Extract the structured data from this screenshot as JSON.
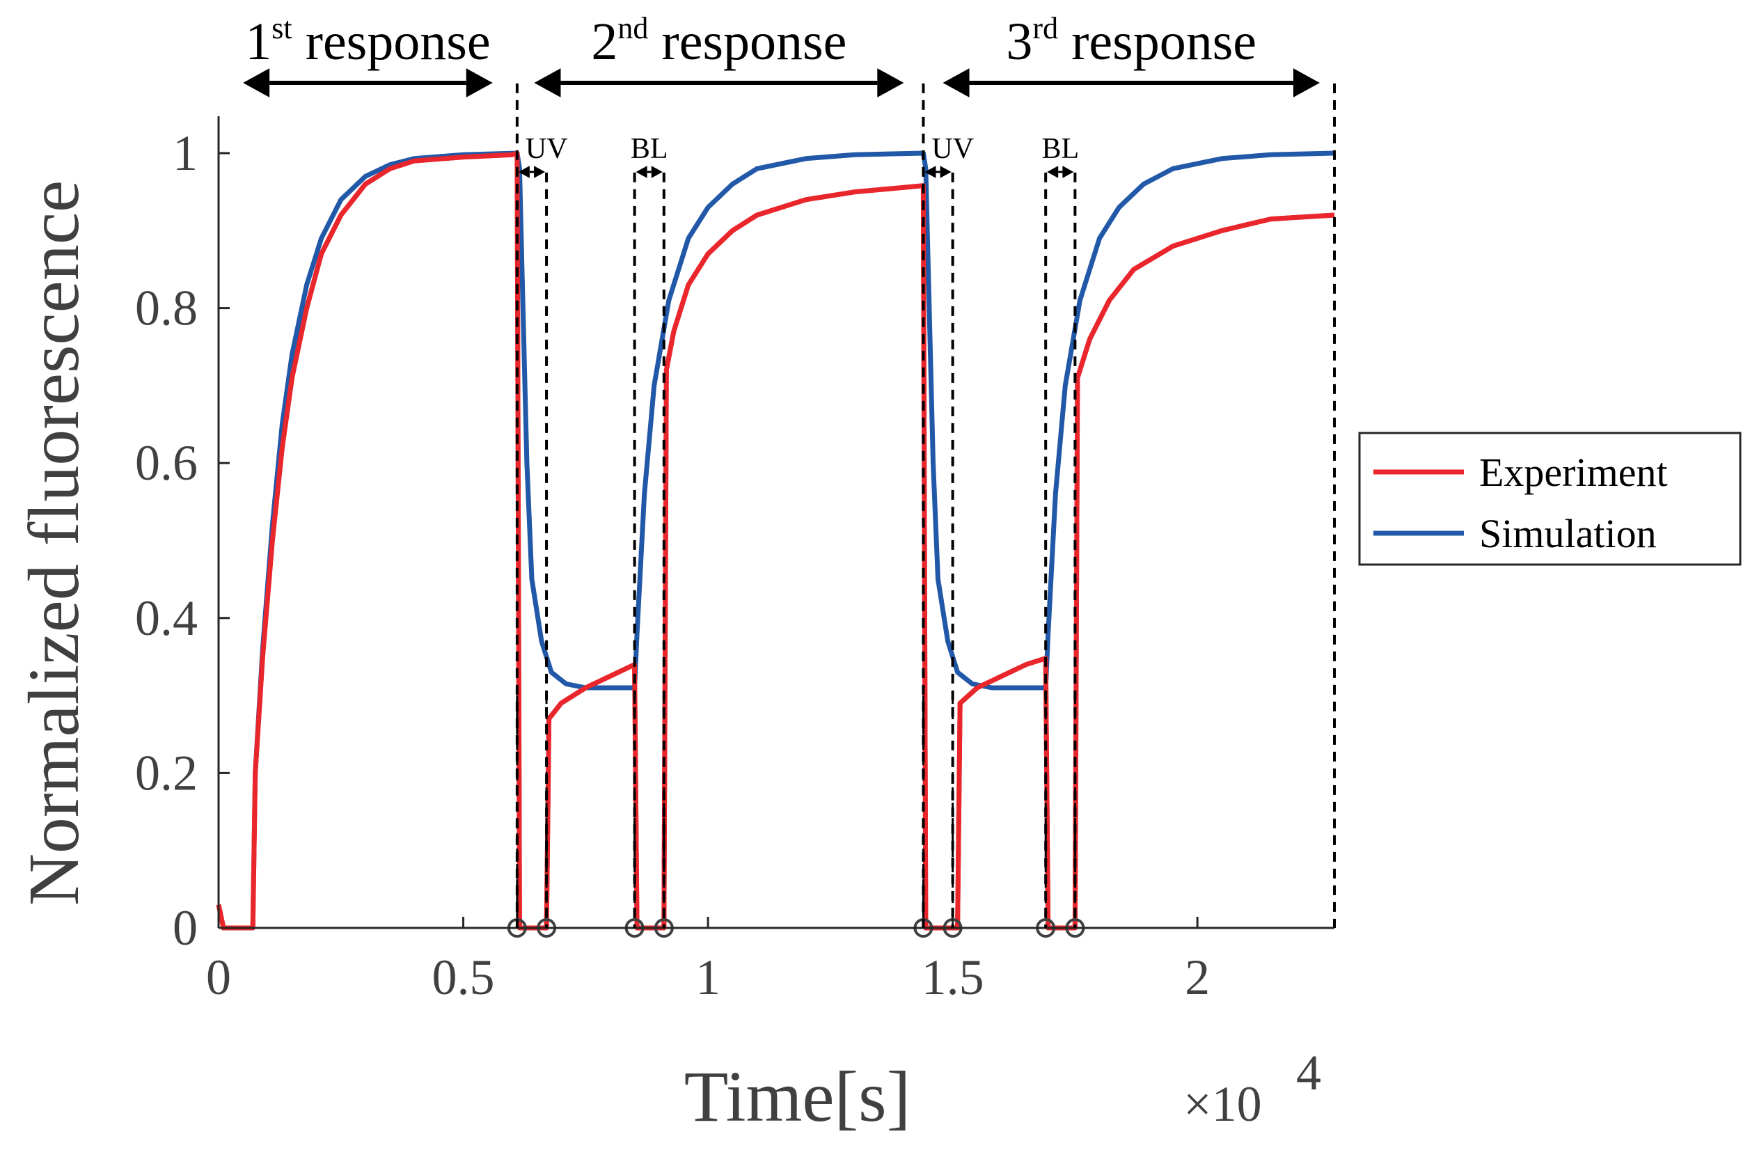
{
  "chart_data": {
    "type": "line",
    "title": "",
    "xlabel": "Time[s]",
    "ylabel": "Normalized fluorescence",
    "x_multiplier": "×10",
    "x_multiplier_exp": "4",
    "xlim": [
      0,
      2.28
    ],
    "ylim": [
      0,
      1.05
    ],
    "x_unit_scale": 10000,
    "xticks": [
      0,
      0.5,
      1,
      1.5,
      2
    ],
    "xtick_labels": [
      "0",
      "0.5",
      "1",
      "1.5",
      "2"
    ],
    "yticks": [
      0,
      0.2,
      0.4,
      0.6,
      0.8,
      1
    ],
    "ytick_labels": [
      "0",
      "0.2",
      "0.4",
      "0.6",
      "0.8",
      "1"
    ],
    "grid": false,
    "legend_position": "right",
    "series": [
      {
        "name": "Experiment",
        "color": "#e8262c",
        "dashed_overlay": true,
        "points": [
          [
            0,
            0.03
          ],
          [
            0.01,
            0
          ],
          [
            0.07,
            0
          ],
          [
            0.075,
            0.2
          ],
          [
            0.09,
            0.35
          ],
          [
            0.11,
            0.5
          ],
          [
            0.13,
            0.62
          ],
          [
            0.15,
            0.71
          ],
          [
            0.18,
            0.8
          ],
          [
            0.21,
            0.87
          ],
          [
            0.25,
            0.92
          ],
          [
            0.3,
            0.96
          ],
          [
            0.35,
            0.98
          ],
          [
            0.4,
            0.99
          ],
          [
            0.5,
            0.995
          ],
          [
            0.6,
            0.998
          ],
          [
            0.61,
            1.0
          ],
          [
            0.615,
            0
          ],
          [
            0.67,
            0
          ],
          [
            0.675,
            0.27
          ],
          [
            0.7,
            0.29
          ],
          [
            0.75,
            0.31
          ],
          [
            0.8,
            0.325
          ],
          [
            0.85,
            0.34
          ],
          [
            0.855,
            0
          ],
          [
            0.91,
            0
          ],
          [
            0.915,
            0.72
          ],
          [
            0.93,
            0.77
          ],
          [
            0.96,
            0.83
          ],
          [
            1.0,
            0.87
          ],
          [
            1.05,
            0.9
          ],
          [
            1.1,
            0.92
          ],
          [
            1.2,
            0.94
          ],
          [
            1.3,
            0.95
          ],
          [
            1.44,
            0.958
          ],
          [
            1.445,
            0
          ],
          [
            1.51,
            0
          ],
          [
            1.515,
            0.29
          ],
          [
            1.55,
            0.31
          ],
          [
            1.6,
            0.325
          ],
          [
            1.65,
            0.34
          ],
          [
            1.69,
            0.348
          ],
          [
            1.695,
            0
          ],
          [
            1.75,
            0
          ],
          [
            1.755,
            0.71
          ],
          [
            1.78,
            0.76
          ],
          [
            1.82,
            0.81
          ],
          [
            1.87,
            0.85
          ],
          [
            1.95,
            0.88
          ],
          [
            2.05,
            0.9
          ],
          [
            2.15,
            0.915
          ],
          [
            2.28,
            0.92
          ]
        ]
      },
      {
        "name": "Simulation",
        "color": "#2158a8",
        "dashed_overlay": false,
        "points": [
          [
            0.075,
            0.2
          ],
          [
            0.09,
            0.36
          ],
          [
            0.11,
            0.52
          ],
          [
            0.13,
            0.65
          ],
          [
            0.15,
            0.74
          ],
          [
            0.18,
            0.83
          ],
          [
            0.21,
            0.89
          ],
          [
            0.25,
            0.94
          ],
          [
            0.3,
            0.97
          ],
          [
            0.35,
            0.985
          ],
          [
            0.4,
            0.993
          ],
          [
            0.5,
            0.998
          ],
          [
            0.61,
            1.0
          ],
          [
            0.615,
            0.98
          ],
          [
            0.62,
            0.85
          ],
          [
            0.63,
            0.6
          ],
          [
            0.64,
            0.45
          ],
          [
            0.66,
            0.37
          ],
          [
            0.68,
            0.33
          ],
          [
            0.71,
            0.315
          ],
          [
            0.75,
            0.31
          ],
          [
            0.85,
            0.31
          ],
          [
            0.855,
            0.38
          ],
          [
            0.87,
            0.56
          ],
          [
            0.89,
            0.7
          ],
          [
            0.92,
            0.81
          ],
          [
            0.96,
            0.89
          ],
          [
            1.0,
            0.93
          ],
          [
            1.05,
            0.96
          ],
          [
            1.1,
            0.98
          ],
          [
            1.2,
            0.993
          ],
          [
            1.3,
            0.998
          ],
          [
            1.44,
            1.0
          ],
          [
            1.445,
            0.98
          ],
          [
            1.45,
            0.85
          ],
          [
            1.46,
            0.6
          ],
          [
            1.47,
            0.45
          ],
          [
            1.49,
            0.37
          ],
          [
            1.51,
            0.33
          ],
          [
            1.54,
            0.315
          ],
          [
            1.58,
            0.31
          ],
          [
            1.69,
            0.31
          ],
          [
            1.695,
            0.38
          ],
          [
            1.71,
            0.56
          ],
          [
            1.73,
            0.7
          ],
          [
            1.76,
            0.81
          ],
          [
            1.8,
            0.89
          ],
          [
            1.84,
            0.93
          ],
          [
            1.89,
            0.96
          ],
          [
            1.95,
            0.98
          ],
          [
            2.05,
            0.993
          ],
          [
            2.15,
            0.998
          ],
          [
            2.28,
            1.0
          ]
        ]
      }
    ],
    "markers": {
      "shape": "open-circle",
      "color": "#404040",
      "x": [
        0.61,
        0.67,
        0.85,
        0.91,
        1.44,
        1.5,
        1.69,
        1.75
      ]
    },
    "vertical_dashed_lines": [
      {
        "x": 0.61,
        "y_top": 1.09
      },
      {
        "x": 0.67,
        "y_top": 0.975
      },
      {
        "x": 0.85,
        "y_top": 0.975
      },
      {
        "x": 0.91,
        "y_top": 0.975
      },
      {
        "x": 1.44,
        "y_top": 1.09
      },
      {
        "x": 1.5,
        "y_top": 0.975
      },
      {
        "x": 1.69,
        "y_top": 0.975
      },
      {
        "x": 1.75,
        "y_top": 0.975
      },
      {
        "x": 2.28,
        "y_top": 1.09
      }
    ],
    "responses": [
      {
        "label_num": "1",
        "label_sup": "st",
        "label_text": "response",
        "x_start": 0.05,
        "x_end": 0.56
      },
      {
        "label_num": "2",
        "label_sup": "nd",
        "label_text": "response",
        "x_start": 0.645,
        "x_end": 1.4
      },
      {
        "label_num": "3",
        "label_sup": "rd",
        "label_text": "response",
        "x_start": 1.48,
        "x_end": 2.25
      }
    ],
    "intervals": [
      {
        "label": "UV",
        "x_start": 0.61,
        "x_end": 0.67
      },
      {
        "label": "BL",
        "x_start": 0.85,
        "x_end": 0.91
      },
      {
        "label": "UV",
        "x_start": 1.44,
        "x_end": 1.5
      },
      {
        "label": "BL",
        "x_start": 1.69,
        "x_end": 1.75
      }
    ]
  }
}
